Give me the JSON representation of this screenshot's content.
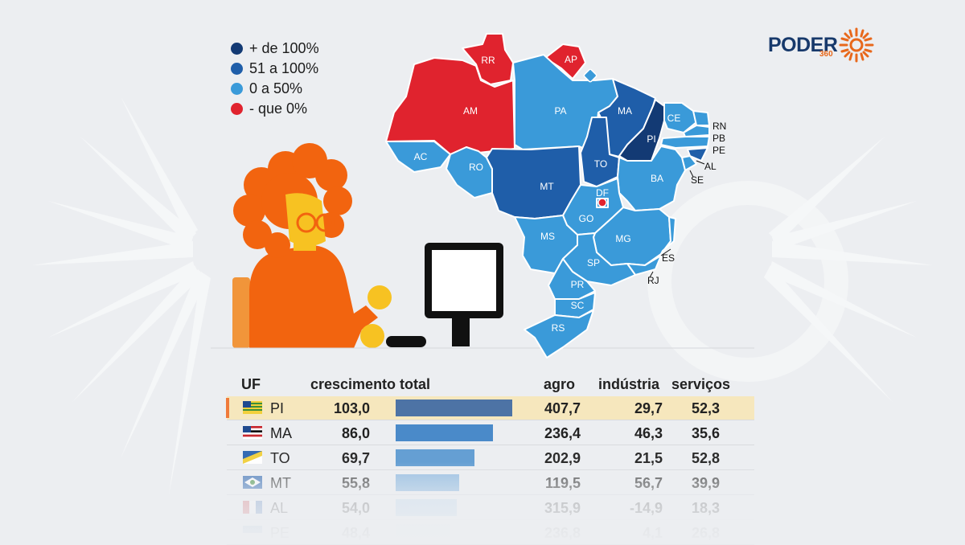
{
  "legend": [
    {
      "label": "+ de 100%",
      "color": "#133a74"
    },
    {
      "label": "51 a 100%",
      "color": "#1f5ea9"
    },
    {
      "label": "0 a 50%",
      "color": "#3a9ad9"
    },
    {
      "label": "- que 0%",
      "color": "#e0232e"
    }
  ],
  "logo": {
    "name": "PODER",
    "sub": "360"
  },
  "map": {
    "colors": {
      "top": "#133a74",
      "high": "#1f5ea9",
      "mid": "#3a9ad9",
      "neg": "#e0232e"
    },
    "states": [
      "RR",
      "AP",
      "AM",
      "PA",
      "MA",
      "PI",
      "CE",
      "RN",
      "PB",
      "PE",
      "AL",
      "SE",
      "AC",
      "RO",
      "MT",
      "TO",
      "BA",
      "DF",
      "GO",
      "MG",
      "ES",
      "RJ",
      "MS",
      "SP",
      "PR",
      "SC",
      "RS"
    ]
  },
  "table": {
    "headers": {
      "uf": "UF",
      "total": "crescimento total",
      "agro": "agro",
      "ind": "indústria",
      "serv": "serviços"
    },
    "rows": [
      {
        "uf": "PI",
        "total": "103,0",
        "value": 103.0,
        "agro": "407,7",
        "ind": "29,7",
        "serv": "52,3",
        "flag": "PI"
      },
      {
        "uf": "MA",
        "total": "86,0",
        "value": 86.0,
        "agro": "236,4",
        "ind": "46,3",
        "serv": "35,6",
        "flag": "MA"
      },
      {
        "uf": "TO",
        "total": "69,7",
        "value": 69.7,
        "agro": "202,9",
        "ind": "21,5",
        "serv": "52,8",
        "flag": "TO"
      },
      {
        "uf": "MT",
        "total": "55,8",
        "value": 55.8,
        "agro": "119,5",
        "ind": "56,7",
        "serv": "39,9",
        "flag": "MT"
      },
      {
        "uf": "AL",
        "total": "54,0",
        "value": 54.0,
        "agro": "315,9",
        "ind": "-14,9",
        "serv": "18,3",
        "flag": "AL"
      },
      {
        "uf": "PE",
        "total": "48,4",
        "value": 48.4,
        "agro": "236,8",
        "ind": "4,1",
        "serv": "26,8",
        "flag": "PE"
      }
    ]
  }
}
